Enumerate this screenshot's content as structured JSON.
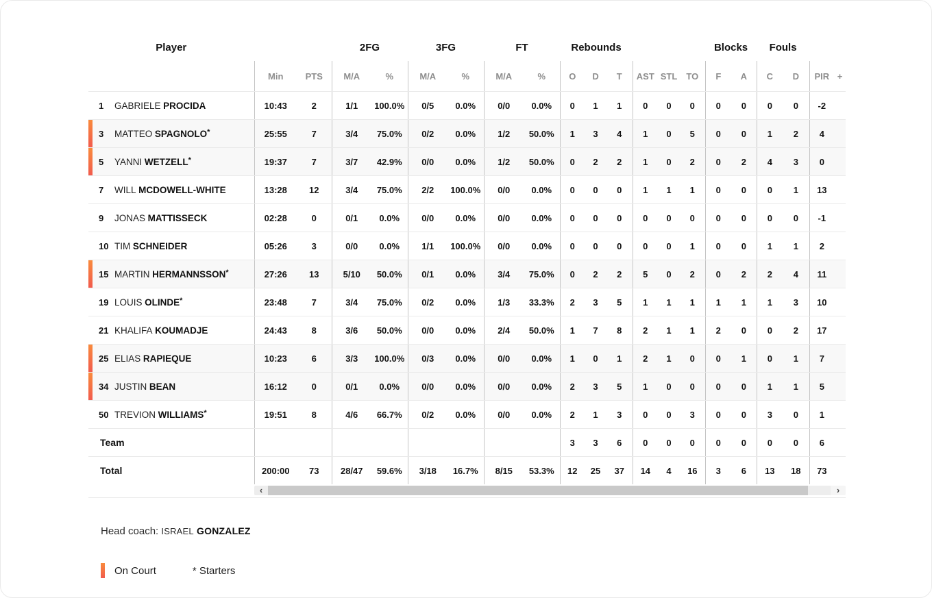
{
  "colors": {
    "on_court_top": "#f98a3c",
    "on_court_bottom": "#f15b4d",
    "scrollbar_thumb": "#c9c9c9",
    "scrollbar_track": "#ededed",
    "row_line": "#eaeaea",
    "column_line": "#c4c4c4"
  },
  "table": {
    "player_col_header": "Player",
    "groups": [
      {
        "label": "2FG"
      },
      {
        "label": "3FG"
      },
      {
        "label": "FT"
      },
      {
        "label": "Rebounds"
      },
      {
        "label": "Blocks"
      },
      {
        "label": "Fouls"
      }
    ],
    "sub_headers": [
      "Min",
      "PTS",
      "M/A",
      "%",
      "M/A",
      "%",
      "M/A",
      "%",
      "O",
      "D",
      "T",
      "AST",
      "STL",
      "TO",
      "F",
      "A",
      "C",
      "D",
      "PIR",
      "+"
    ],
    "rows": [
      {
        "number": "1",
        "first": "GABRIELE",
        "last": "PROCIDA",
        "starter": false,
        "on_court": false,
        "stats": [
          "10:43",
          "2",
          "1/1",
          "100.0%",
          "0/5",
          "0.0%",
          "0/0",
          "0.0%",
          "0",
          "1",
          "1",
          "0",
          "0",
          "0",
          "0",
          "0",
          "0",
          "0",
          "-2",
          ""
        ]
      },
      {
        "number": "3",
        "first": "MATTEO",
        "last": "SPAGNOLO",
        "starter": true,
        "on_court": true,
        "stats": [
          "25:55",
          "7",
          "3/4",
          "75.0%",
          "0/2",
          "0.0%",
          "1/2",
          "50.0%",
          "1",
          "3",
          "4",
          "1",
          "0",
          "5",
          "0",
          "0",
          "1",
          "2",
          "4",
          ""
        ]
      },
      {
        "number": "5",
        "first": "YANNI",
        "last": "WETZELL",
        "starter": true,
        "on_court": true,
        "stats": [
          "19:37",
          "7",
          "3/7",
          "42.9%",
          "0/0",
          "0.0%",
          "1/2",
          "50.0%",
          "0",
          "2",
          "2",
          "1",
          "0",
          "2",
          "0",
          "2",
          "4",
          "3",
          "0",
          ""
        ]
      },
      {
        "number": "7",
        "first": "WILL",
        "last": "MCDOWELL-WHITE",
        "starter": false,
        "on_court": false,
        "stats": [
          "13:28",
          "12",
          "3/4",
          "75.0%",
          "2/2",
          "100.0%",
          "0/0",
          "0.0%",
          "0",
          "0",
          "0",
          "1",
          "1",
          "1",
          "0",
          "0",
          "0",
          "1",
          "13",
          ""
        ]
      },
      {
        "number": "9",
        "first": "JONAS",
        "last": "MATTISSECK",
        "starter": false,
        "on_court": false,
        "stats": [
          "02:28",
          "0",
          "0/1",
          "0.0%",
          "0/0",
          "0.0%",
          "0/0",
          "0.0%",
          "0",
          "0",
          "0",
          "0",
          "0",
          "0",
          "0",
          "0",
          "0",
          "0",
          "-1",
          ""
        ]
      },
      {
        "number": "10",
        "first": "TIM",
        "last": "SCHNEIDER",
        "starter": false,
        "on_court": false,
        "stats": [
          "05:26",
          "3",
          "0/0",
          "0.0%",
          "1/1",
          "100.0%",
          "0/0",
          "0.0%",
          "0",
          "0",
          "0",
          "0",
          "0",
          "1",
          "0",
          "0",
          "1",
          "1",
          "2",
          ""
        ]
      },
      {
        "number": "15",
        "first": "MARTIN",
        "last": "HERMANNSSON",
        "starter": true,
        "on_court": true,
        "stats": [
          "27:26",
          "13",
          "5/10",
          "50.0%",
          "0/1",
          "0.0%",
          "3/4",
          "75.0%",
          "0",
          "2",
          "2",
          "5",
          "0",
          "2",
          "0",
          "2",
          "2",
          "4",
          "11",
          ""
        ]
      },
      {
        "number": "19",
        "first": "LOUIS",
        "last": "OLINDE",
        "starter": true,
        "on_court": false,
        "stats": [
          "23:48",
          "7",
          "3/4",
          "75.0%",
          "0/2",
          "0.0%",
          "1/3",
          "33.3%",
          "2",
          "3",
          "5",
          "1",
          "1",
          "1",
          "1",
          "1",
          "1",
          "3",
          "10",
          ""
        ]
      },
      {
        "number": "21",
        "first": "KHALIFA",
        "last": "KOUMADJE",
        "starter": false,
        "on_court": false,
        "stats": [
          "24:43",
          "8",
          "3/6",
          "50.0%",
          "0/0",
          "0.0%",
          "2/4",
          "50.0%",
          "1",
          "7",
          "8",
          "2",
          "1",
          "1",
          "2",
          "0",
          "0",
          "2",
          "17",
          ""
        ]
      },
      {
        "number": "25",
        "first": "ELIAS",
        "last": "RAPIEQUE",
        "starter": false,
        "on_court": true,
        "stats": [
          "10:23",
          "6",
          "3/3",
          "100.0%",
          "0/3",
          "0.0%",
          "0/0",
          "0.0%",
          "1",
          "0",
          "1",
          "2",
          "1",
          "0",
          "0",
          "1",
          "0",
          "1",
          "7",
          ""
        ]
      },
      {
        "number": "34",
        "first": "JUSTIN",
        "last": "BEAN",
        "starter": false,
        "on_court": true,
        "stats": [
          "16:12",
          "0",
          "0/1",
          "0.0%",
          "0/0",
          "0.0%",
          "0/0",
          "0.0%",
          "2",
          "3",
          "5",
          "1",
          "0",
          "0",
          "0",
          "0",
          "1",
          "1",
          "5",
          ""
        ]
      },
      {
        "number": "50",
        "first": "TREVION",
        "last": "WILLIAMS",
        "starter": true,
        "on_court": false,
        "stats": [
          "19:51",
          "8",
          "4/6",
          "66.7%",
          "0/2",
          "0.0%",
          "0/0",
          "0.0%",
          "2",
          "1",
          "3",
          "0",
          "0",
          "3",
          "0",
          "0",
          "3",
          "0",
          "1",
          ""
        ]
      }
    ],
    "team_row": {
      "label": "Team",
      "stats": [
        "",
        "",
        "",
        "",
        "",
        "",
        "",
        "",
        "3",
        "3",
        "6",
        "0",
        "0",
        "0",
        "0",
        "0",
        "0",
        "0",
        "6",
        ""
      ]
    },
    "total_row": {
      "label": "Total",
      "stats": [
        "200:00",
        "73",
        "28/47",
        "59.6%",
        "3/18",
        "16.7%",
        "8/15",
        "53.3%",
        "12",
        "25",
        "37",
        "14",
        "4",
        "16",
        "3",
        "6",
        "13",
        "18",
        "73",
        ""
      ]
    }
  },
  "scrollbar": {
    "left_arrow": "‹",
    "right_arrow": "›"
  },
  "footer": {
    "head_coach_label": "Head coach:",
    "coach_first": "ISRAEL",
    "coach_last": "GONZALEZ",
    "legend_on_court": "On Court",
    "legend_starters": "* Starters",
    "starter_mark": "*"
  }
}
